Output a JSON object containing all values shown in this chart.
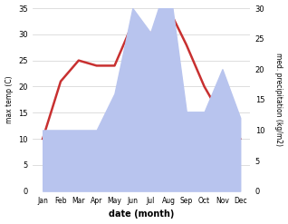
{
  "months": [
    "Jan",
    "Feb",
    "Mar",
    "Apr",
    "May",
    "Jun",
    "Jul",
    "Aug",
    "Sep",
    "Oct",
    "Nov",
    "Dec"
  ],
  "temp": [
    10,
    21,
    25,
    24,
    24,
    32,
    30,
    35,
    28,
    20,
    14,
    10
  ],
  "precip_mm": [
    10,
    10,
    10,
    10,
    16,
    30,
    26,
    35,
    13,
    13,
    20,
    12
  ],
  "temp_color": "#c83030",
  "precip_fill_color": "#b8c4ee",
  "temp_ylim": [
    0,
    35
  ],
  "precip_ylim": [
    0,
    30
  ],
  "temp_yticks": [
    0,
    5,
    10,
    15,
    20,
    25,
    30,
    35
  ],
  "precip_yticks": [
    0,
    5,
    10,
    15,
    20,
    25,
    30
  ],
  "xlabel": "date (month)",
  "ylabel_left": "max temp (C)",
  "ylabel_right": "med. precipitation (kg/m2)",
  "background_color": "#ffffff",
  "grid_color": "#d0d0d0",
  "temp_lw": 1.8
}
